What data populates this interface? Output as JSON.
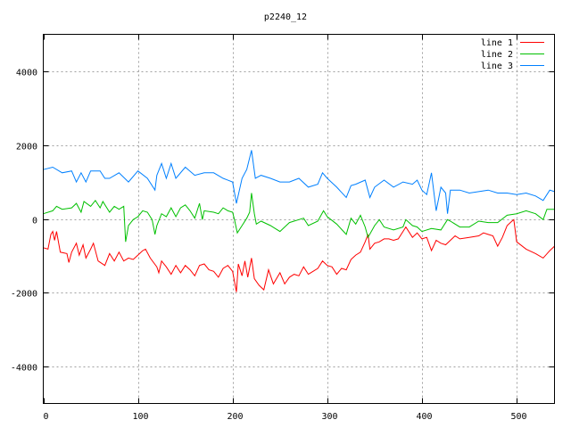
{
  "chart_data": {
    "type": "line",
    "title": "p2240_12",
    "xlabel": "",
    "ylabel": "",
    "xlim": [
      0,
      540
    ],
    "ylim": [
      -5000,
      5000
    ],
    "xticks": [
      0,
      100,
      200,
      300,
      400,
      500
    ],
    "yticks": [
      -4000,
      -2000,
      0,
      2000,
      4000
    ],
    "grid": true,
    "legend_position": "top-right",
    "series": [
      {
        "name": "line 1",
        "color": "#ff0000",
        "x": [
          0,
          5,
          8,
          10,
          12,
          14,
          18,
          25,
          27,
          30,
          35,
          38,
          42,
          45,
          50,
          53,
          58,
          65,
          70,
          75,
          80,
          85,
          90,
          95,
          100,
          105,
          108,
          113,
          120,
          122,
          125,
          130,
          135,
          140,
          145,
          150,
          155,
          160,
          165,
          170,
          175,
          180,
          185,
          190,
          195,
          200,
          204,
          206,
          210,
          213,
          216,
          220,
          223,
          228,
          233,
          238,
          243,
          250,
          255,
          260,
          265,
          270,
          275,
          280,
          285,
          290,
          295,
          300,
          305,
          310,
          315,
          320,
          325,
          330,
          335,
          340,
          343,
          345,
          350,
          355,
          360,
          365,
          370,
          375,
          380,
          383,
          390,
          395,
          400,
          405,
          410,
          415,
          420,
          425,
          430,
          435,
          440,
          450,
          460,
          465,
          470,
          475,
          480,
          485,
          490,
          495,
          497,
          500,
          510,
          520,
          528,
          535,
          540
        ],
        "y": [
          -780,
          -820,
          -420,
          -340,
          -580,
          -340,
          -900,
          -940,
          -1180,
          -900,
          -660,
          -980,
          -700,
          -1060,
          -820,
          -660,
          -1140,
          -1260,
          -940,
          -1140,
          -900,
          -1140,
          -1060,
          -1100,
          -980,
          -860,
          -820,
          -1060,
          -1300,
          -1460,
          -1140,
          -1300,
          -1500,
          -1260,
          -1460,
          -1260,
          -1380,
          -1540,
          -1260,
          -1220,
          -1380,
          -1420,
          -1580,
          -1340,
          -1260,
          -1420,
          -1980,
          -1220,
          -1540,
          -1140,
          -1580,
          -1060,
          -1620,
          -1800,
          -1920,
          -1380,
          -1760,
          -1460,
          -1760,
          -1580,
          -1500,
          -1540,
          -1300,
          -1500,
          -1420,
          -1340,
          -1140,
          -1260,
          -1300,
          -1500,
          -1340,
          -1380,
          -1100,
          -980,
          -900,
          -620,
          -420,
          -820,
          -660,
          -620,
          -540,
          -540,
          -580,
          -540,
          -340,
          -220,
          -500,
          -380,
          -540,
          -500,
          -860,
          -580,
          -660,
          -700,
          -580,
          -460,
          -540,
          -500,
          -460,
          -380,
          -420,
          -460,
          -740,
          -500,
          -180,
          -60,
          -20,
          -620,
          -820,
          -940,
          -1060,
          -860,
          -740
        ]
      },
      {
        "name": "line 2",
        "color": "#00c000",
        "x": [
          0,
          10,
          14,
          20,
          30,
          35,
          40,
          43,
          50,
          55,
          60,
          63,
          70,
          75,
          80,
          85,
          87,
          90,
          95,
          100,
          105,
          110,
          115,
          118,
          120,
          125,
          130,
          135,
          140,
          145,
          150,
          155,
          160,
          165,
          168,
          170,
          180,
          185,
          190,
          195,
          200,
          202,
          205,
          210,
          215,
          218,
          220,
          223,
          225,
          230,
          240,
          250,
          260,
          270,
          275,
          280,
          290,
          296,
          300,
          310,
          320,
          325,
          330,
          335,
          340,
          343,
          350,
          355,
          360,
          370,
          380,
          383,
          390,
          395,
          400,
          410,
          420,
          427,
          430,
          440,
          450,
          460,
          470,
          480,
          490,
          500,
          510,
          520,
          528,
          532,
          540
        ],
        "y": [
          140,
          220,
          340,
          260,
          300,
          420,
          180,
          470,
          340,
          500,
          300,
          470,
          180,
          340,
          260,
          340,
          -620,
          -180,
          -20,
          60,
          220,
          180,
          -20,
          -420,
          -180,
          140,
          60,
          300,
          60,
          300,
          380,
          220,
          20,
          420,
          -20,
          220,
          180,
          140,
          300,
          220,
          180,
          -20,
          -380,
          -180,
          20,
          180,
          700,
          140,
          -140,
          -60,
          -180,
          -340,
          -100,
          -20,
          20,
          -180,
          -60,
          220,
          60,
          -140,
          -420,
          20,
          -140,
          100,
          -220,
          -500,
          -180,
          -20,
          -220,
          -300,
          -220,
          -20,
          -180,
          -220,
          -340,
          -260,
          -300,
          -20,
          -60,
          -220,
          -220,
          -60,
          -100,
          -100,
          100,
          140,
          220,
          140,
          -20,
          260,
          260
        ]
      },
      {
        "name": "line 3",
        "color": "#0080ff",
        "x": [
          0,
          10,
          20,
          30,
          35,
          40,
          45,
          50,
          60,
          65,
          70,
          80,
          90,
          100,
          110,
          118,
          120,
          125,
          130,
          135,
          140,
          150,
          160,
          170,
          180,
          190,
          200,
          204,
          210,
          215,
          220,
          224,
          230,
          240,
          250,
          260,
          270,
          280,
          290,
          295,
          300,
          310,
          320,
          325,
          330,
          340,
          345,
          350,
          360,
          370,
          380,
          390,
          395,
          400,
          405,
          410,
          415,
          420,
          425,
          427,
          430,
          440,
          450,
          460,
          470,
          480,
          490,
          500,
          510,
          520,
          528,
          535,
          540
        ],
        "y": [
          1336,
          1400,
          1250,
          1300,
          1000,
          1250,
          1000,
          1300,
          1300,
          1100,
          1100,
          1250,
          1000,
          1300,
          1100,
          780,
          1180,
          1500,
          1100,
          1500,
          1100,
          1400,
          1180,
          1250,
          1250,
          1100,
          1000,
          420,
          1100,
          1340,
          1860,
          1100,
          1180,
          1100,
          1000,
          1000,
          1100,
          860,
          940,
          1250,
          1100,
          860,
          580,
          900,
          940,
          1050,
          580,
          860,
          1050,
          860,
          1000,
          940,
          1050,
          780,
          660,
          1250,
          220,
          860,
          700,
          140,
          780,
          780,
          700,
          740,
          780,
          700,
          700,
          660,
          700,
          620,
          500,
          780,
          740
        ]
      }
    ]
  }
}
